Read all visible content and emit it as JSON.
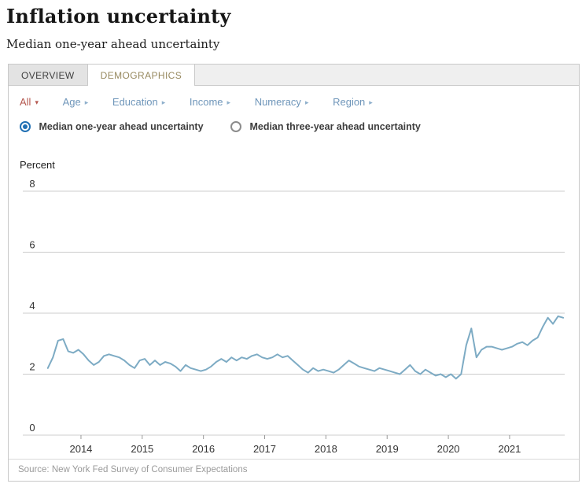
{
  "page": {
    "title": "Inflation uncertainty",
    "subtitle": "Median one-year ahead uncertainty"
  },
  "tabs": [
    {
      "label": "OVERVIEW",
      "active": false
    },
    {
      "label": "DEMOGRAPHICS",
      "active": true
    }
  ],
  "filters": {
    "items": [
      {
        "label": "All",
        "arrow": "▾",
        "active": true
      },
      {
        "label": "Age",
        "arrow": "▸",
        "active": false
      },
      {
        "label": "Education",
        "arrow": "▸",
        "active": false
      },
      {
        "label": "Income",
        "arrow": "▸",
        "active": false
      },
      {
        "label": "Numeracy",
        "arrow": "▸",
        "active": false
      },
      {
        "label": "Region",
        "arrow": "▸",
        "active": false
      }
    ]
  },
  "radios": [
    {
      "label": "Median one-year ahead uncertainty",
      "selected": true
    },
    {
      "label": "Median three-year ahead uncertainty",
      "selected": false
    }
  ],
  "chart_data": {
    "type": "line",
    "title": "Median one-year ahead uncertainty",
    "ylabel": "Percent",
    "ylim": [
      0,
      8
    ],
    "y_ticks": [
      0,
      2,
      4,
      6,
      8
    ],
    "x_ticks": [
      2014,
      2015,
      2016,
      2017,
      2018,
      2019,
      2020,
      2021
    ],
    "x_tick_labels": [
      "2014",
      "2015",
      "2016",
      "2017",
      "2018",
      "2019",
      "2020",
      "2021"
    ],
    "xlim": [
      2013.05,
      2021.9
    ],
    "grid": "horizontal-only",
    "legend": "none",
    "line_color": "#7dabc4",
    "grid_color": "#cccccc",
    "tick_color": "#999999",
    "months": [
      "2013-06",
      "2013-07",
      "2013-08",
      "2013-09",
      "2013-10",
      "2013-11",
      "2013-12",
      "2014-01",
      "2014-02",
      "2014-03",
      "2014-04",
      "2014-05",
      "2014-06",
      "2014-07",
      "2014-08",
      "2014-09",
      "2014-10",
      "2014-11",
      "2014-12",
      "2015-01",
      "2015-02",
      "2015-03",
      "2015-04",
      "2015-05",
      "2015-06",
      "2015-07",
      "2015-08",
      "2015-09",
      "2015-10",
      "2015-11",
      "2015-12",
      "2016-01",
      "2016-02",
      "2016-03",
      "2016-04",
      "2016-05",
      "2016-06",
      "2016-07",
      "2016-08",
      "2016-09",
      "2016-10",
      "2016-11",
      "2016-12",
      "2017-01",
      "2017-02",
      "2017-03",
      "2017-04",
      "2017-05",
      "2017-06",
      "2017-07",
      "2017-08",
      "2017-09",
      "2017-10",
      "2017-11",
      "2017-12",
      "2018-01",
      "2018-02",
      "2018-03",
      "2018-04",
      "2018-05",
      "2018-06",
      "2018-07",
      "2018-08",
      "2018-09",
      "2018-10",
      "2018-11",
      "2018-12",
      "2019-01",
      "2019-02",
      "2019-03",
      "2019-04",
      "2019-05",
      "2019-06",
      "2019-07",
      "2019-08",
      "2019-09",
      "2019-10",
      "2019-11",
      "2019-12",
      "2020-01",
      "2020-02",
      "2020-03",
      "2020-04",
      "2020-05",
      "2020-06",
      "2020-07",
      "2020-08",
      "2020-09",
      "2020-10",
      "2020-11",
      "2020-12",
      "2021-01",
      "2021-02",
      "2021-03",
      "2021-04",
      "2021-05",
      "2021-06",
      "2021-07",
      "2021-08",
      "2021-09",
      "2021-10",
      "2021-11"
    ],
    "values": [
      2.2,
      2.55,
      3.1,
      3.15,
      2.75,
      2.7,
      2.8,
      2.65,
      2.45,
      2.3,
      2.4,
      2.6,
      2.65,
      2.6,
      2.55,
      2.45,
      2.3,
      2.2,
      2.45,
      2.5,
      2.3,
      2.45,
      2.3,
      2.4,
      2.35,
      2.25,
      2.1,
      2.3,
      2.2,
      2.15,
      2.1,
      2.15,
      2.25,
      2.4,
      2.5,
      2.4,
      2.55,
      2.45,
      2.55,
      2.5,
      2.6,
      2.65,
      2.55,
      2.5,
      2.55,
      2.65,
      2.55,
      2.6,
      2.45,
      2.3,
      2.15,
      2.05,
      2.2,
      2.1,
      2.15,
      2.1,
      2.05,
      2.15,
      2.3,
      2.45,
      2.35,
      2.25,
      2.2,
      2.15,
      2.1,
      2.2,
      2.15,
      2.1,
      2.05,
      2.0,
      2.15,
      2.3,
      2.1,
      2.0,
      2.15,
      2.05,
      1.95,
      2.0,
      1.9,
      2.0,
      1.85,
      2.0,
      2.95,
      3.5,
      2.55,
      2.8,
      2.9,
      2.9,
      2.85,
      2.8,
      2.85,
      2.9,
      3.0,
      3.05,
      2.95,
      3.1,
      3.2,
      3.55,
      3.85,
      3.65,
      3.9,
      3.85
    ]
  },
  "footer": {
    "source": "Source: New York Fed Survey of Consumer Expectations"
  },
  "colors": {
    "accent_blue": "#2170b3",
    "link_blue": "#6f96ba",
    "active_filter_red": "#b4574e",
    "active_tab_text": "#97895f",
    "line": "#7dabc4"
  }
}
